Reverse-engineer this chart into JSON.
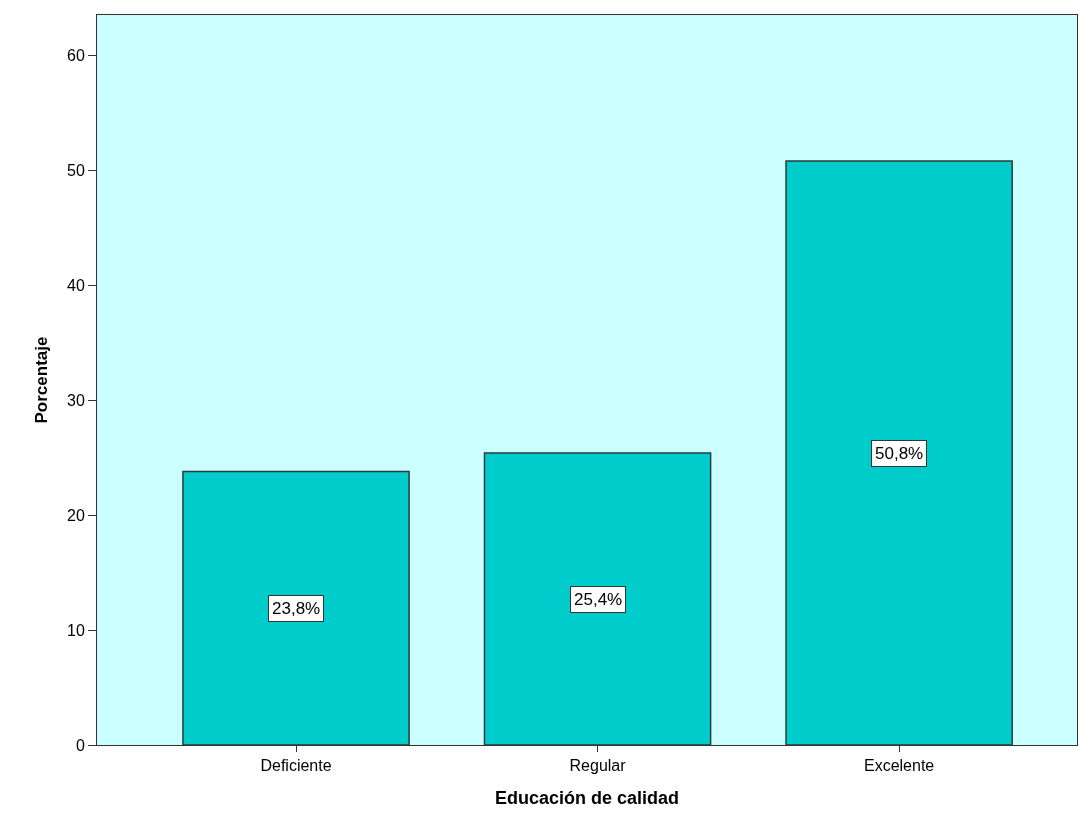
{
  "chart_data": {
    "type": "bar",
    "xlabel": "Educación de calidad",
    "ylabel": "Porcentaje",
    "categories": [
      "Deficiente",
      "Regular",
      "Excelente"
    ],
    "values": [
      23.8,
      25.4,
      50.8
    ],
    "value_labels": [
      "23,8%",
      "25,4%",
      "50,8%"
    ],
    "color": "#00cccc",
    "ylim": [
      0,
      63.5
    ],
    "yticks": [
      0,
      10,
      20,
      30,
      40,
      50,
      60
    ],
    "grid": false,
    "legend": false
  }
}
